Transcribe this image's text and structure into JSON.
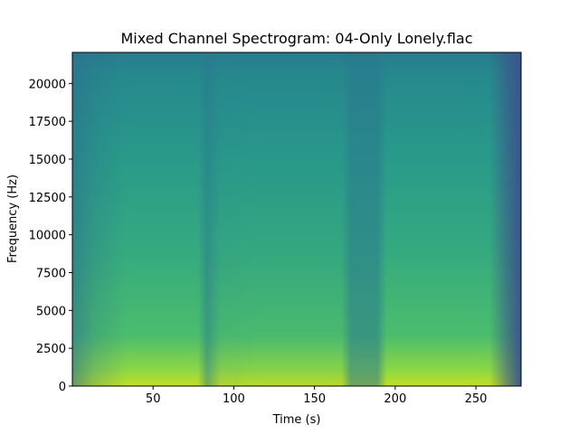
{
  "chart_data": {
    "type": "spectrogram",
    "title": "Mixed Channel Spectrogram: 04-Only Lonely.flac",
    "x_label": "Time (s)",
    "y_label": "Frequency (Hz)",
    "xlim": [
      0,
      278
    ],
    "ylim": [
      0,
      22050
    ],
    "xticks": [
      50,
      100,
      150,
      200,
      250
    ],
    "yticks": [
      0,
      2500,
      5000,
      7500,
      10000,
      12500,
      15000,
      17500,
      20000
    ]
  }
}
